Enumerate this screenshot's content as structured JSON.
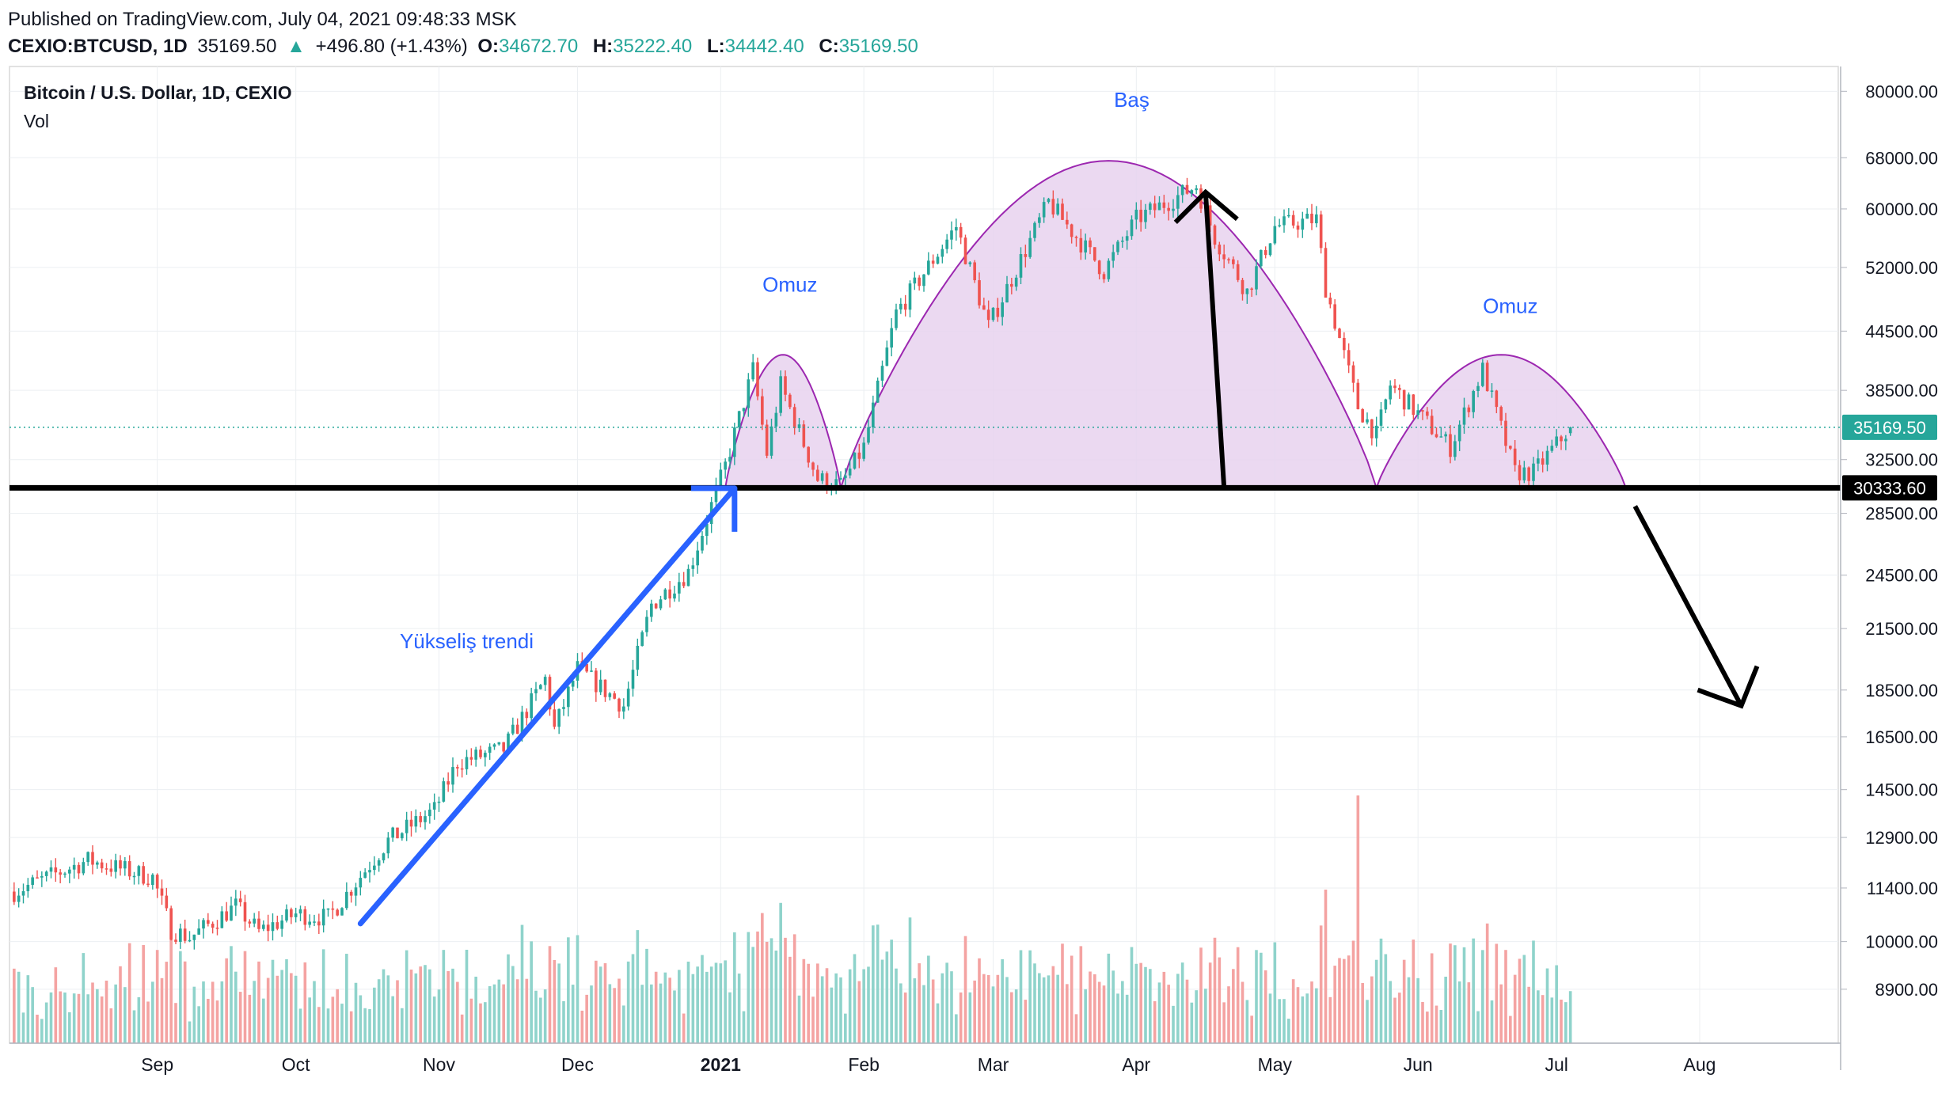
{
  "header": {
    "published": "Published on TradingView.com, July 04, 2021 09:48:33 MSK",
    "symbol": "CEXIO:BTCUSD, 1D",
    "last": "35169.50",
    "up_arrow": "▲",
    "change": "+496.80 (+1.43%)",
    "o_label": "O:",
    "o_value": "34672.70",
    "h_label": "H:",
    "h_value": "35222.40",
    "l_label": "L:",
    "l_value": "34442.40",
    "c_label": "C:",
    "c_value": "35169.50"
  },
  "panel": {
    "title": "Bitcoin / U.S. Dollar, 1D, CEXIO",
    "volume_label": "Vol"
  },
  "colors": {
    "up": "#26a69a",
    "down": "#ef5350",
    "vol_up": "#8fd3cb",
    "vol_down": "#f4a3a2",
    "pattern_fill": "#e8d2ee",
    "pattern_stroke": "#9c27b0",
    "trend_arrow": "#2962ff",
    "annotation_text": "#2962ff",
    "neckline": "#000000",
    "price_tag": "#26a69a"
  },
  "chart_data": {
    "type": "candlestick",
    "scale": "log",
    "x_axis": {
      "range": [
        "2020-07-31",
        "2021-08-31"
      ],
      "tick_labels": [
        "Sep",
        "Oct",
        "Nov",
        "Dec",
        "2021",
        "Feb",
        "Mar",
        "Apr",
        "May",
        "Jun",
        "Jul",
        "Aug"
      ],
      "tick_dates": [
        "2020-09-01",
        "2020-10-01",
        "2020-11-01",
        "2020-12-01",
        "2021-01-01",
        "2021-02-01",
        "2021-03-01",
        "2021-04-01",
        "2021-05-01",
        "2021-06-01",
        "2021-07-01",
        "2021-08-01"
      ]
    },
    "y_axis": {
      "ylim": [
        7800,
        85000
      ],
      "tick_labels": [
        "80000.00",
        "68000.00",
        "60000.00",
        "52000.00",
        "44500.00",
        "38500.00",
        "32500.00",
        "28500.00",
        "24500.00",
        "21500.00",
        "18500.00",
        "16500.00",
        "14500.00",
        "12900.00",
        "11400.00",
        "10000.00",
        "8900.00"
      ],
      "tick_values": [
        80000,
        68000,
        60000,
        52000,
        44500,
        38500,
        32500,
        28500,
        24500,
        21500,
        18500,
        16500,
        14500,
        12900,
        11400,
        10000,
        8900
      ]
    },
    "price_path": [
      [
        "2020-08-01",
        11300
      ],
      [
        "2020-08-17",
        12200
      ],
      [
        "2020-08-31",
        11700
      ],
      [
        "2020-09-04",
        10300
      ],
      [
        "2020-09-08",
        10100
      ],
      [
        "2020-09-18",
        10900
      ],
      [
        "2020-09-23",
        10250
      ],
      [
        "2020-10-01",
        10700
      ],
      [
        "2020-10-08",
        10600
      ],
      [
        "2020-10-21",
        12800
      ],
      [
        "2020-10-31",
        13800
      ],
      [
        "2020-11-05",
        15500
      ],
      [
        "2020-11-15",
        16000
      ],
      [
        "2020-11-24",
        19000
      ],
      [
        "2020-11-26",
        16800
      ],
      [
        "2020-12-01",
        19500
      ],
      [
        "2020-12-11",
        17800
      ],
      [
        "2020-12-17",
        22800
      ],
      [
        "2020-12-25",
        24700
      ],
      [
        "2021-01-02",
        32000
      ],
      [
        "2021-01-08",
        40500
      ],
      [
        "2021-01-11",
        33000
      ],
      [
        "2021-01-14",
        39000
      ],
      [
        "2021-01-22",
        31000
      ],
      [
        "2021-01-27",
        30500
      ],
      [
        "2021-02-01",
        33500
      ],
      [
        "2021-02-08",
        46500
      ],
      [
        "2021-02-21",
        57500
      ],
      [
        "2021-02-28",
        45000
      ],
      [
        "2021-03-13",
        61000
      ],
      [
        "2021-03-25",
        51500
      ],
      [
        "2021-04-01",
        58500
      ],
      [
        "2021-04-14",
        63500
      ],
      [
        "2021-04-18",
        56000
      ],
      [
        "2021-04-25",
        49000
      ],
      [
        "2021-05-01",
        57500
      ],
      [
        "2021-05-10",
        58500
      ],
      [
        "2021-05-12",
        49500
      ],
      [
        "2021-05-19",
        37000
      ],
      [
        "2021-05-23",
        34500
      ],
      [
        "2021-05-26",
        39000
      ],
      [
        "2021-06-08",
        33500
      ],
      [
        "2021-06-15",
        40500
      ],
      [
        "2021-06-22",
        31500
      ],
      [
        "2021-06-26",
        31500
      ],
      [
        "2021-07-04",
        35169.5
      ]
    ],
    "current_price": 35169.5,
    "current_price_label": "35169.50",
    "neckline": 30333.6,
    "neckline_label": "30333.60",
    "volume": {
      "max_date": "2021-05-19"
    },
    "annotations": [
      {
        "text": "Omuz",
        "date": "2021-01-16",
        "price": 49000
      },
      {
        "text": "Baş",
        "date": "2021-03-31",
        "price": 77000
      },
      {
        "text": "Omuz",
        "date": "2021-06-21",
        "price": 46500
      },
      {
        "text": "Yükseliş trendi",
        "date": "2020-11-07",
        "price": 20500
      }
    ],
    "pattern": {
      "name": "head-and-shoulders",
      "left_shoulder": {
        "start": "2021-01-02",
        "peak_date": "2021-01-15",
        "peak": 42000,
        "end": "2021-01-27"
      },
      "head": {
        "start": "2021-01-27",
        "peak_date": "2021-03-31",
        "peak": 67500,
        "end": "2021-05-23"
      },
      "right_shoulder": {
        "start": "2021-05-23",
        "peak_date": "2021-06-20",
        "peak": 42000,
        "end": "2021-07-16"
      }
    }
  }
}
